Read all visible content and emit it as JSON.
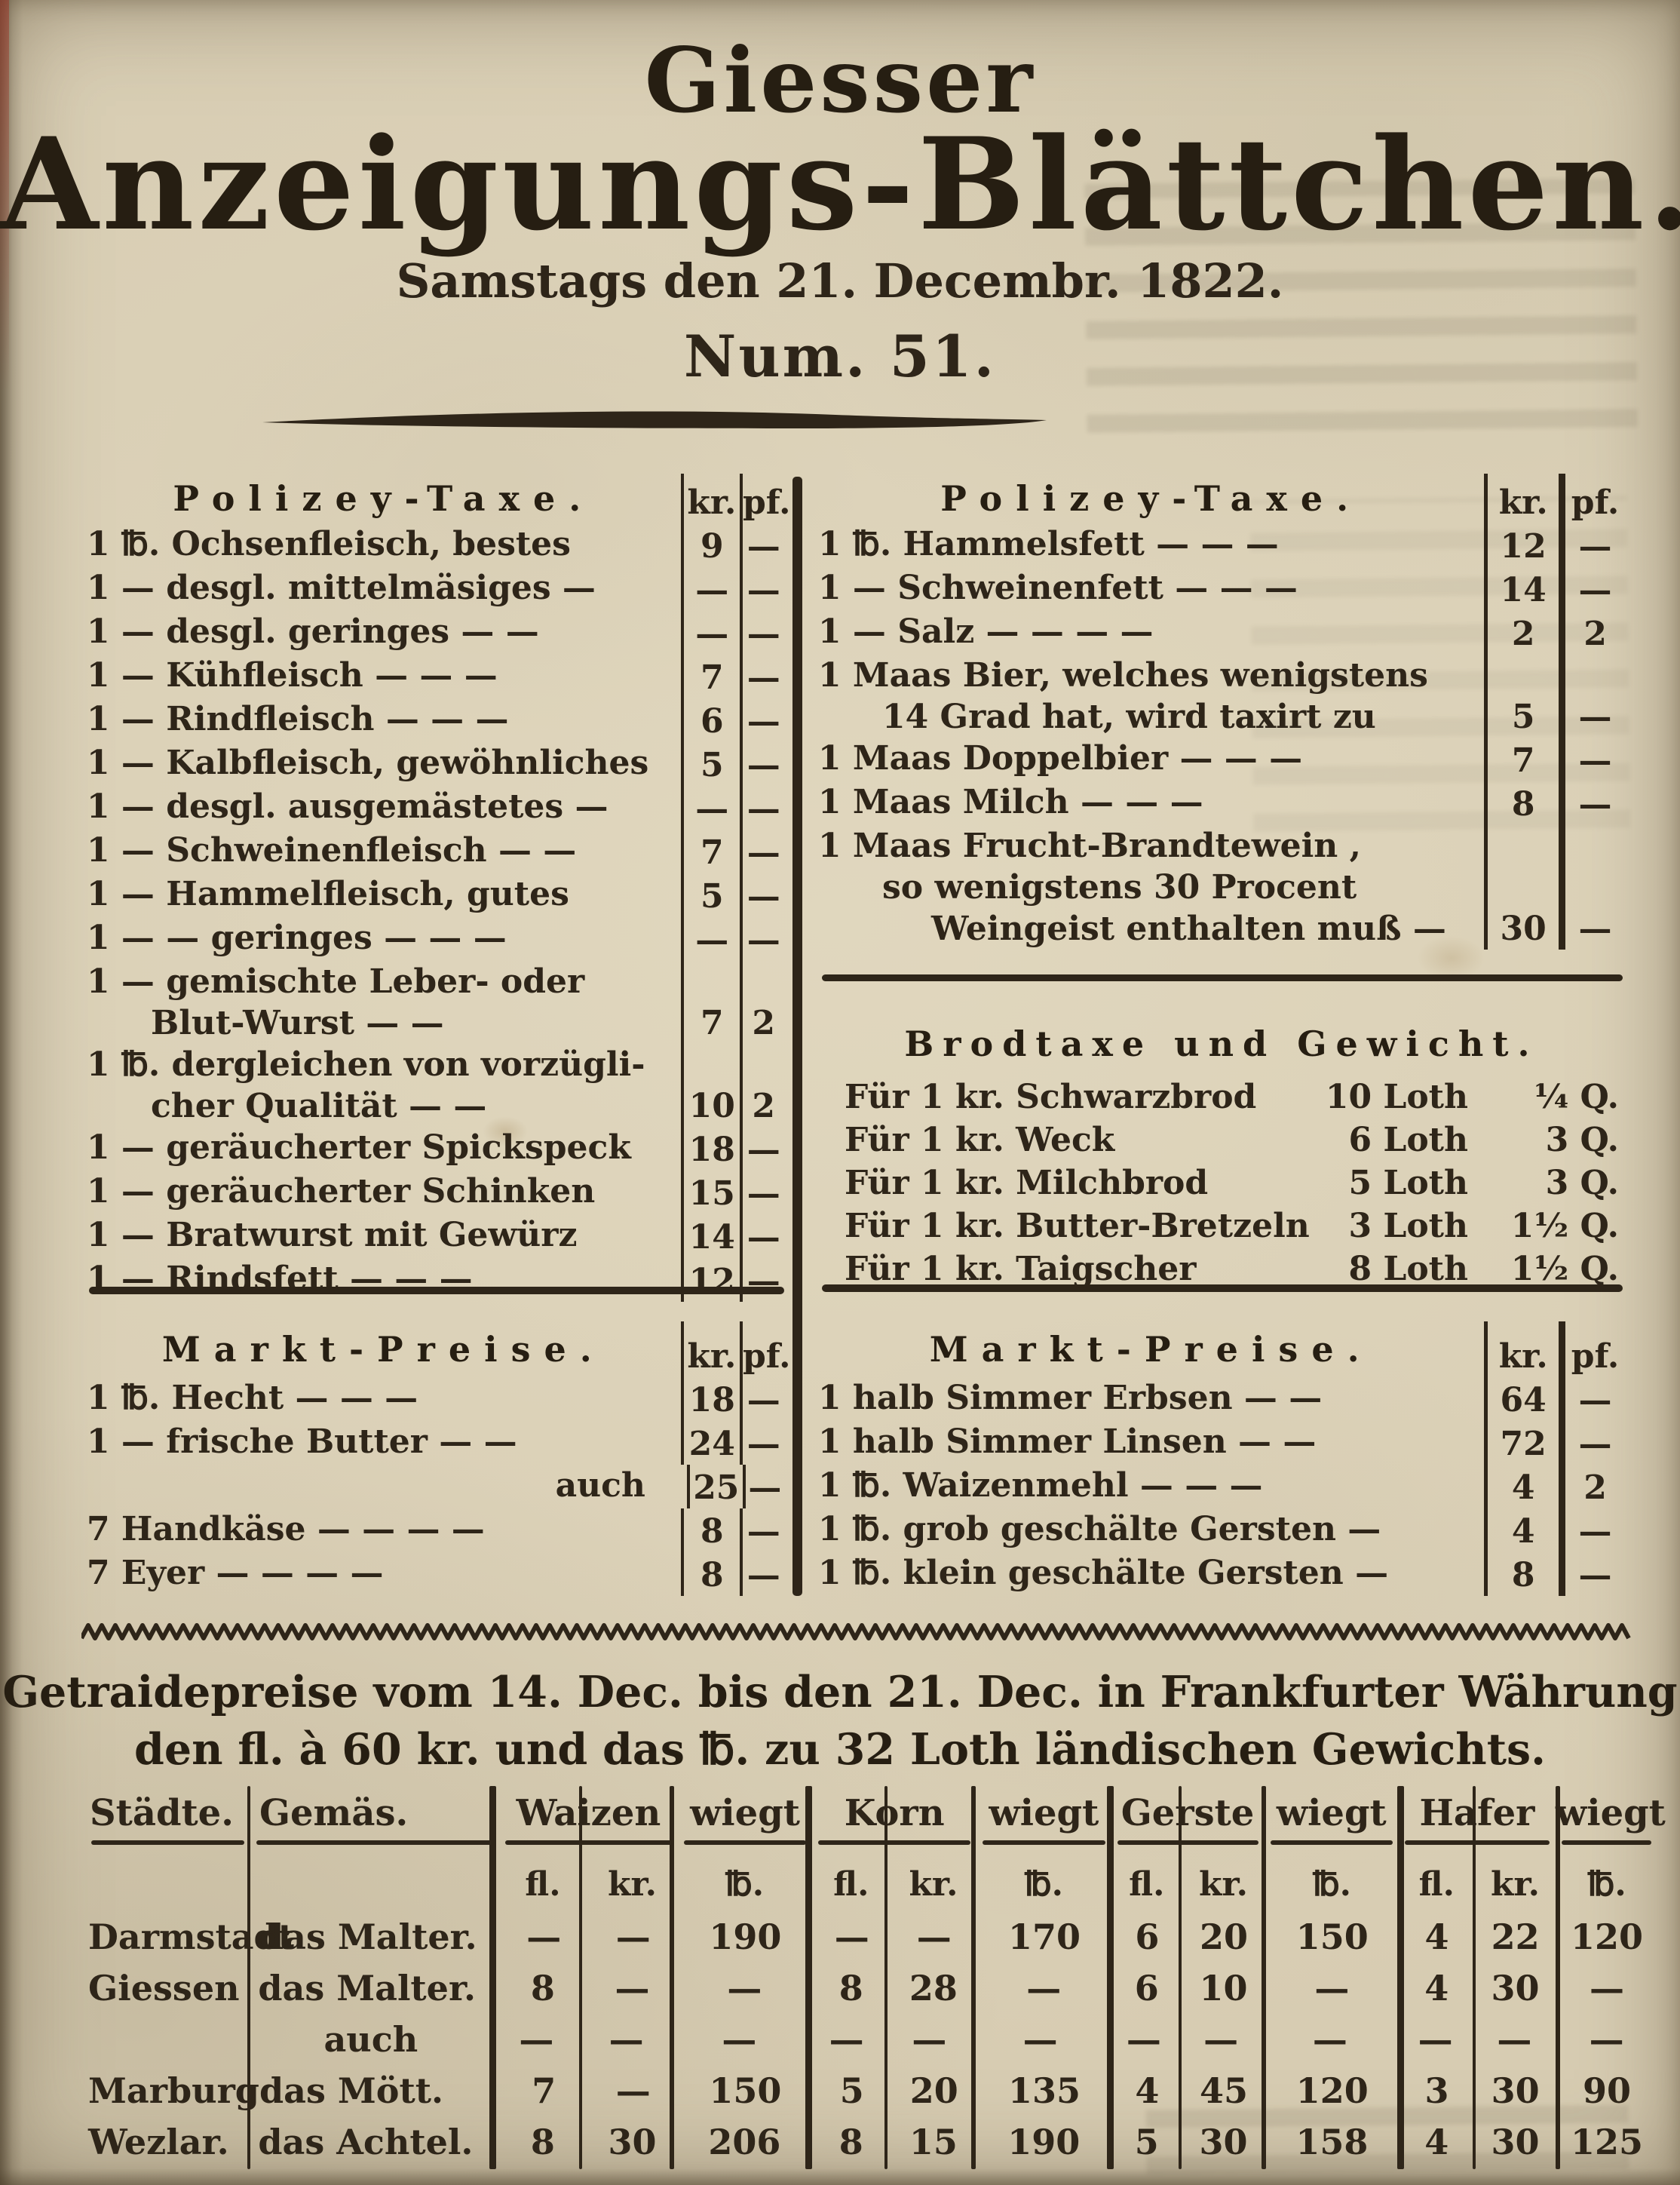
{
  "masthead": {
    "title_top": "Giesser",
    "title_main": "Anzeigungs-Blättchen.",
    "dateline": "Samstags den 21. Decembr. 1822.",
    "issue_number": "Num. 51."
  },
  "police_tax_left": {
    "heading": "Polizey-Taxe.",
    "col_kr": "kr.",
    "col_pf": "pf.",
    "rows": [
      {
        "l1": "1 ℔. Ochsenfleisch,  bestes",
        "kr": "9",
        "pf": "—"
      },
      {
        "l1": "1 — desgl. mittelmäsiges —",
        "kr": "—",
        "pf": "—"
      },
      {
        "l1": "1 — desgl. geringes — —",
        "kr": "—",
        "pf": "—"
      },
      {
        "l1": "1 — Kühfleisch — — —",
        "kr": "7",
        "pf": "—"
      },
      {
        "l1": "1 — Rindfleisch — — —",
        "kr": "6",
        "pf": "—"
      },
      {
        "l1": "1 — Kalbfleisch, gewöhnliches",
        "kr": "5",
        "pf": "—"
      },
      {
        "l1": "1 — desgl. ausgemästetes —",
        "kr": "—",
        "pf": "—"
      },
      {
        "l1": "1 — Schweinenfleisch — —",
        "kr": "7",
        "pf": "—"
      },
      {
        "l1": "1 — Hammelfleisch, gutes",
        "kr": "5",
        "pf": "—"
      },
      {
        "l1": "1 — — geringes — — —",
        "kr": "—",
        "pf": "—"
      },
      {
        "l1": "1 — gemischte Leber- oder",
        "l2": "Blut-Wurst — —",
        "kr": "7",
        "pf": "2"
      },
      {
        "l1": "1 ℔. dergleichen von vorzügli-",
        "l2": "cher Qualität — —",
        "kr": "10",
        "pf": "2"
      },
      {
        "l1": "1 — geräucherter Spickspeck",
        "kr": "18",
        "pf": "—"
      },
      {
        "l1": "1 — geräucherter Schinken",
        "kr": "15",
        "pf": "—"
      },
      {
        "l1": "1 — Bratwurst mit Gewürz",
        "kr": "14",
        "pf": "—"
      },
      {
        "l1": "1 — Rindsfett — — —",
        "kr": "12",
        "pf": "—"
      }
    ]
  },
  "police_tax_right": {
    "heading": "Polizey-Taxe.",
    "col_kr": "kr.",
    "col_pf": "pf.",
    "rows": [
      {
        "l1": "1 ℔. Hammelsfett — — —",
        "kr": "12",
        "pf": "—"
      },
      {
        "l1": "1 — Schweinenfett — — —",
        "kr": "14",
        "pf": "—"
      },
      {
        "l1": "1 — Salz — — — —",
        "kr": "2",
        "pf": "2"
      },
      {
        "l1": "1 Maas Bier, welches wenigstens",
        "l2": "14 Grad hat, wird taxirt zu",
        "kr": "5",
        "pf": "—"
      },
      {
        "l1": "1 Maas Doppelbier — — —",
        "kr": "7",
        "pf": "—"
      },
      {
        "l1": "1 Maas Milch — — —",
        "kr": "8",
        "pf": "—"
      },
      {
        "l1": "1 Maas Frucht-Brandtewein ,",
        "l2": "so wenigstens 30 Procent",
        "l3": "Weingeist enthalten muß —",
        "kr": "30",
        "pf": "—"
      }
    ]
  },
  "bread_tax": {
    "heading": "Brodtaxe und Gewicht.",
    "rows": [
      {
        "label": "Für 1 kr. Schwarzbrod",
        "loth": "10 Loth",
        "q": "¼ Q."
      },
      {
        "label": "Für 1 kr. Weck",
        "loth": "6 Loth",
        "q": "3 Q."
      },
      {
        "label": "Für 1 kr. Milchbrod",
        "loth": "5 Loth",
        "q": "3 Q."
      },
      {
        "label": "Für 1 kr. Butter-Bretzeln",
        "loth": "3 Loth",
        "q": "1½ Q."
      },
      {
        "label": "Für 1 kr. Taigscher",
        "loth": "8 Loth",
        "q": "1½ Q."
      }
    ]
  },
  "market_left": {
    "heading": "Markt-Preise.",
    "col_kr": "kr.",
    "col_pf": "pf.",
    "rows": [
      {
        "l1": "1 ℔. Hecht — — —",
        "kr": "18",
        "pf": "—"
      },
      {
        "l1": "1 — frische Butter — —",
        "kr": "24",
        "pf": "—"
      },
      {
        "l1": "auch",
        "kr": "25",
        "pf": "—"
      },
      {
        "l1": "7 Handkäse — — — —",
        "kr": "8",
        "pf": "—"
      },
      {
        "l1": "7 Eyer — — — —",
        "kr": "8",
        "pf": "—"
      }
    ]
  },
  "market_right": {
    "heading": "Markt-Preise.",
    "col_kr": "kr.",
    "col_pf": "pf.",
    "rows": [
      {
        "l1": "1 halb Simmer Erbsen — —",
        "kr": "64",
        "pf": "—"
      },
      {
        "l1": "1 halb Simmer Linsen — —",
        "kr": "72",
        "pf": "—"
      },
      {
        "l1": "1 ℔. Waizenmehl — — —",
        "kr": "4",
        "pf": "2"
      },
      {
        "l1": "1 ℔. grob geschälte Gersten —",
        "kr": "4",
        "pf": "—"
      },
      {
        "l1": "1 ℔. klein geschälte Gersten —",
        "kr": "8",
        "pf": "—"
      }
    ]
  },
  "grain_prices": {
    "heading_line1": "Getraidepreise vom 14. Dec. bis den 21. Dec. in Frankfurter Währung",
    "heading_line2": "den fl. à 60 kr. und das ℔. zu 32 Loth ländischen Gewichts.",
    "col_city": "Städte.",
    "col_measure": "Gemäs.",
    "col_wheat": "Waizen",
    "col_rye": "Korn",
    "col_barley": "Gerste",
    "col_oats": "Hafer",
    "col_weighs": "wiegt",
    "sub_fl": "fl.",
    "sub_kr": "kr.",
    "sub_lb": "℔.",
    "rows": [
      {
        "city": "Darmstadt",
        "measure": "das Malter.",
        "v": [
          "—",
          "—",
          "190",
          "—",
          "—",
          "170",
          "6",
          "20",
          "150",
          "4",
          "22",
          "120"
        ]
      },
      {
        "city": "Giessen",
        "measure": "das Malter.",
        "v": [
          "8",
          "—",
          "—",
          "8",
          "28",
          "—",
          "6",
          "10",
          "—",
          "4",
          "30",
          "—"
        ]
      },
      {
        "city": "",
        "measure": "auch",
        "v": [
          "—",
          "—",
          "—",
          "—",
          "—",
          "—",
          "—",
          "—",
          "—",
          "—",
          "—",
          "—"
        ]
      },
      {
        "city": "Marburg",
        "measure": "das Mött.",
        "v": [
          "7",
          "—",
          "150",
          "5",
          "20",
          "135",
          "4",
          "45",
          "120",
          "3",
          "30",
          "90"
        ]
      },
      {
        "city": "Wezlar.",
        "measure": "das Achtel.",
        "v": [
          "8",
          "30",
          "206",
          "8",
          "15",
          "190",
          "5",
          "30",
          "158",
          "4",
          "30",
          "125"
        ]
      }
    ]
  }
}
